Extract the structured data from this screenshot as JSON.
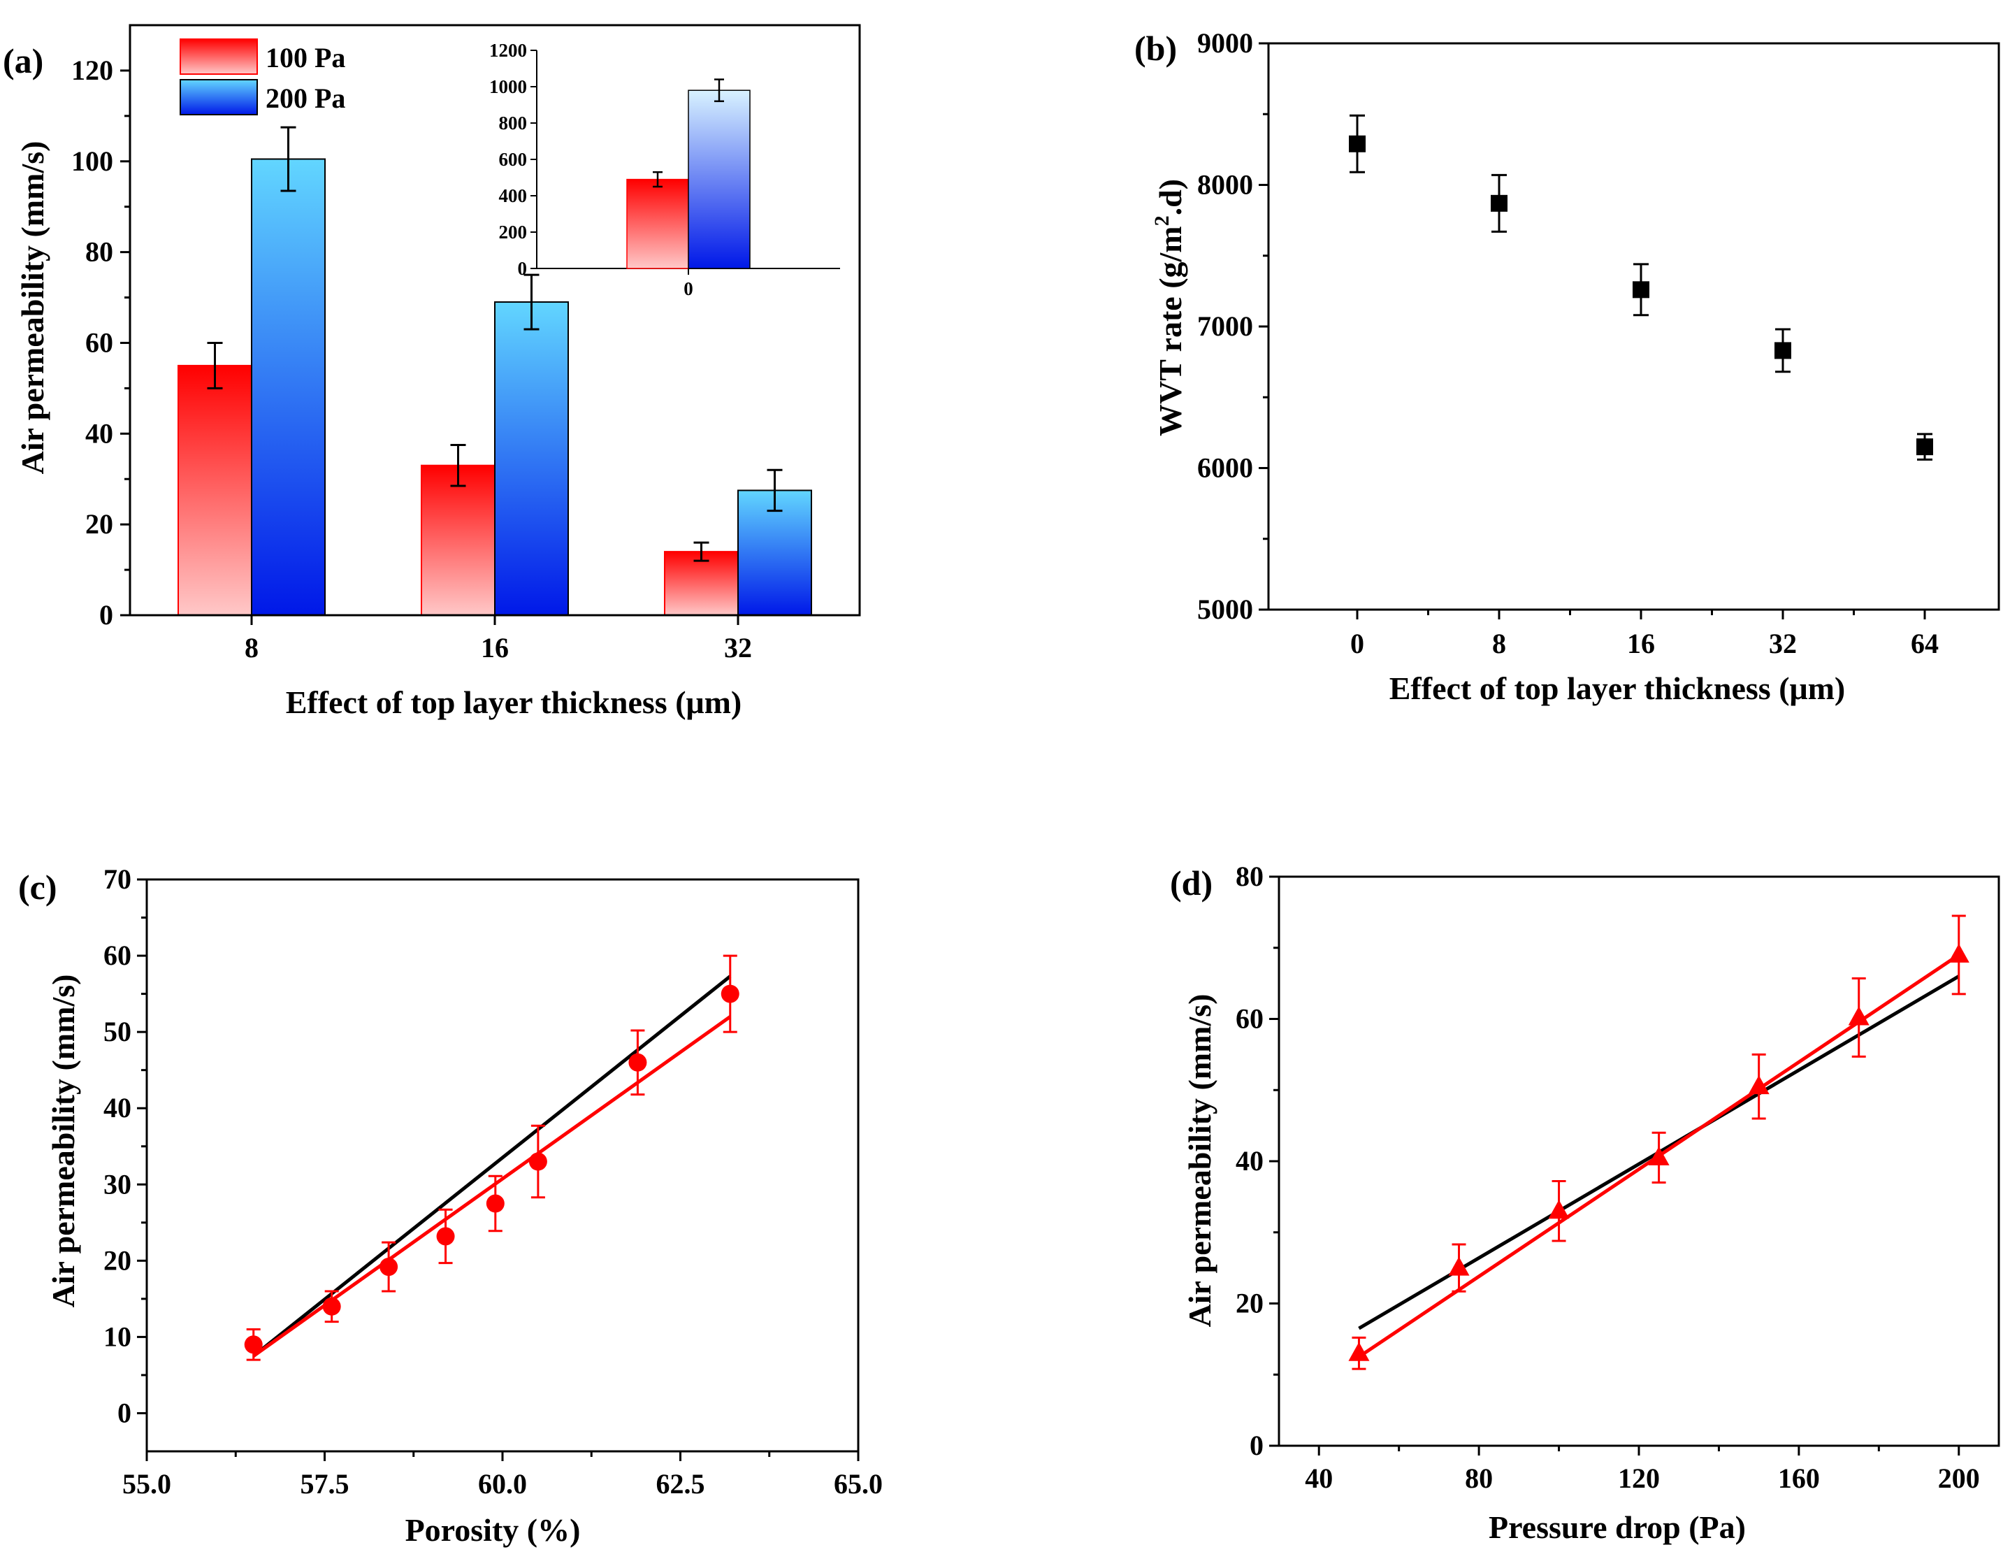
{
  "colors": {
    "red_top": "#ff0000",
    "red_bottom": "#ffc8c8",
    "blue_top": "#62d6ff",
    "blue_bottom": "#0018e8",
    "inset_blue_top": "#d8f2ff",
    "red_line": "#ff0000",
    "black": "#000000"
  },
  "chart_data": [
    {
      "id": "a",
      "panel_label": "(a)",
      "type": "bar",
      "xlabel": "Effect of  top layer thickness (μm)",
      "ylabel": "Air permeability (mm/s)",
      "categories": [
        "8",
        "16",
        "32"
      ],
      "ylim": [
        0,
        130
      ],
      "yticks": [
        0,
        20,
        40,
        60,
        80,
        100,
        120
      ],
      "legend_position": "top-left",
      "series": [
        {
          "name": "100 Pa",
          "values": [
            55,
            33,
            14
          ],
          "errors": [
            5,
            4.5,
            2
          ]
        },
        {
          "name": "200 Pa",
          "values": [
            100.5,
            69,
            27.5
          ],
          "errors": [
            7,
            6,
            4.5
          ]
        }
      ],
      "inset": {
        "type": "bar",
        "categories": [
          "0"
        ],
        "ylim": [
          0,
          1200
        ],
        "yticks": [
          0,
          200,
          400,
          600,
          800,
          1000,
          1200
        ],
        "series": [
          {
            "name": "100 Pa",
            "values": [
              490
            ],
            "errors": [
              40
            ]
          },
          {
            "name": "200 Pa",
            "values": [
              980
            ],
            "errors": [
              60
            ]
          }
        ]
      }
    },
    {
      "id": "b",
      "panel_label": "(b)",
      "type": "scatter",
      "xlabel": "Effect of  top layer thickness (μm)",
      "ylabel_main": "WVT rate (g/m",
      "ylabel_sup": "2",
      "ylabel_end": ".d)",
      "categories": [
        "0",
        "8",
        "16",
        "32",
        "64"
      ],
      "ylim": [
        5000,
        9000
      ],
      "yticks": [
        5000,
        6000,
        7000,
        8000,
        9000
      ],
      "values": [
        8290,
        7870,
        7260,
        6830,
        6150
      ],
      "errors": [
        200,
        200,
        180,
        150,
        90
      ]
    },
    {
      "id": "c",
      "panel_label": "(c)",
      "type": "scatter",
      "xlabel": "Porosity (%)",
      "ylabel": "Air permeability (mm/s)",
      "xlim": [
        55.0,
        65.0
      ],
      "xticks": [
        "55.0",
        "57.5",
        "60.0",
        "62.5",
        "65.0"
      ],
      "ylim": [
        -5,
        70
      ],
      "yticks": [
        0,
        10,
        20,
        30,
        40,
        50,
        60,
        70
      ],
      "points": {
        "x": [
          56.5,
          57.6,
          58.4,
          59.2,
          59.9,
          60.5,
          61.9,
          63.2
        ],
        "y": [
          9,
          14,
          19.2,
          23.2,
          27.5,
          33,
          46,
          55
        ],
        "errors": [
          2,
          2,
          3.2,
          3.5,
          3.6,
          4.7,
          4.2,
          5
        ]
      },
      "fits": [
        {
          "name": "black fit",
          "color": "black",
          "x": [
            56.5,
            63.2
          ],
          "y": [
            7.5,
            57.3
          ]
        },
        {
          "name": "red fit",
          "color": "red",
          "x": [
            56.5,
            63.2
          ],
          "y": [
            7.5,
            52
          ]
        }
      ]
    },
    {
      "id": "d",
      "panel_label": "(d)",
      "type": "scatter",
      "xlabel": "Pressure drop (Pa)",
      "ylabel": "Air permeability (mm/s)",
      "xlim": [
        30,
        210
      ],
      "xticks": [
        40,
        80,
        120,
        160,
        200
      ],
      "ylim": [
        0,
        80
      ],
      "yticks": [
        0,
        20,
        40,
        60,
        80
      ],
      "points": {
        "x": [
          50,
          75,
          100,
          125,
          150,
          175,
          200
        ],
        "y": [
          13,
          25,
          33,
          40.5,
          50.5,
          60.2,
          69
        ],
        "errors": [
          2.2,
          3.3,
          4.2,
          3.5,
          4.5,
          5.5,
          5.5
        ]
      },
      "fits": [
        {
          "name": "black fit",
          "color": "black",
          "x": [
            50,
            200
          ],
          "y": [
            16.5,
            66
          ]
        },
        {
          "name": "red fit",
          "color": "red",
          "x": [
            50,
            200
          ],
          "y": [
            12.5,
            69
          ]
        }
      ]
    }
  ]
}
